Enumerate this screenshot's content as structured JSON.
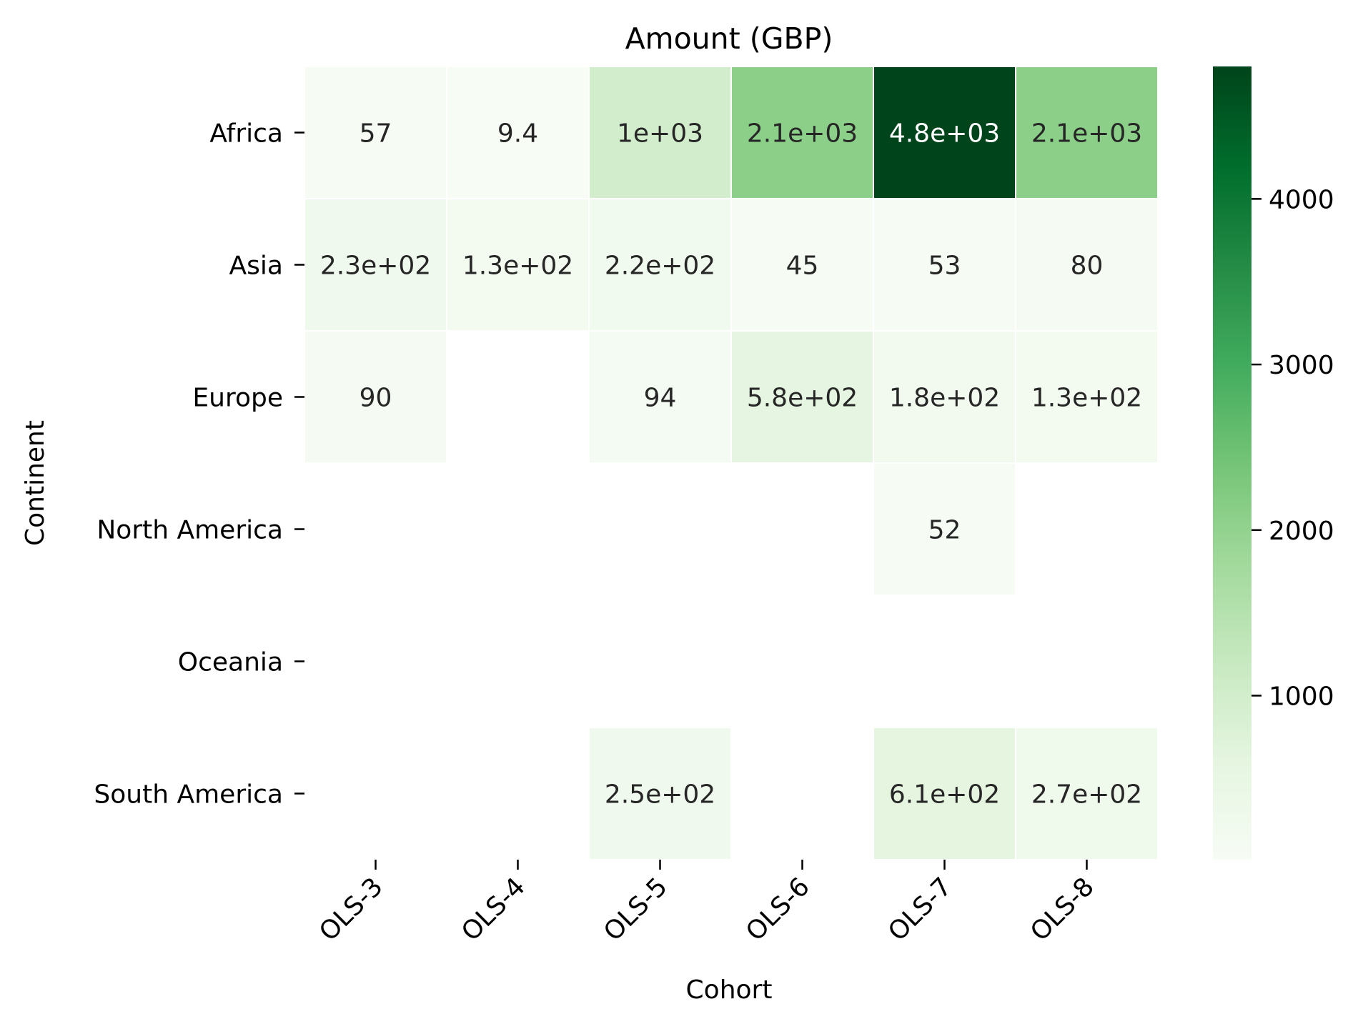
{
  "chart_data": {
    "type": "heatmap",
    "title": "Amount (GBP)",
    "xlabel": "Cohort",
    "ylabel": "Continent",
    "x_categories": [
      "OLS-3",
      "OLS-4",
      "OLS-5",
      "OLS-6",
      "OLS-7",
      "OLS-8"
    ],
    "y_categories": [
      "Africa",
      "Asia",
      "Europe",
      "North America",
      "Oceania",
      "South America"
    ],
    "values": [
      [
        57,
        9.4,
        1000,
        2100,
        4800,
        2100
      ],
      [
        230,
        130,
        220,
        45,
        53,
        80
      ],
      [
        90,
        null,
        94,
        580,
        180,
        130
      ],
      [
        null,
        null,
        null,
        null,
        52,
        null
      ],
      [
        null,
        null,
        null,
        null,
        null,
        null
      ],
      [
        null,
        null,
        250,
        null,
        610,
        270
      ]
    ],
    "annotations": [
      [
        "57",
        "9.4",
        "1e+03",
        "2.1e+03",
        "4.8e+03",
        "2.1e+03"
      ],
      [
        "2.3e+02",
        "1.3e+02",
        "2.2e+02",
        "45",
        "53",
        "80"
      ],
      [
        "90",
        "",
        "94",
        "5.8e+02",
        "1.8e+02",
        "1.3e+02"
      ],
      [
        "",
        "",
        "",
        "",
        "52",
        ""
      ],
      [
        "",
        "",
        "",
        "",
        "",
        ""
      ],
      [
        "",
        "",
        "2.5e+02",
        "",
        "6.1e+02",
        "2.7e+02"
      ]
    ],
    "colormap": "Greens",
    "colorbar": {
      "vmin": 9.4,
      "vmax": 4800,
      "ticks": [
        1000,
        2000,
        3000,
        4000
      ],
      "tick_labels": [
        "1000",
        "2000",
        "3000",
        "4000"
      ]
    },
    "colors": {
      "low": "#f7fcf5",
      "high": "#00441b",
      "cell_border": "#ffffff",
      "text_dark": "#262626",
      "text_light": "#ffffff"
    }
  }
}
